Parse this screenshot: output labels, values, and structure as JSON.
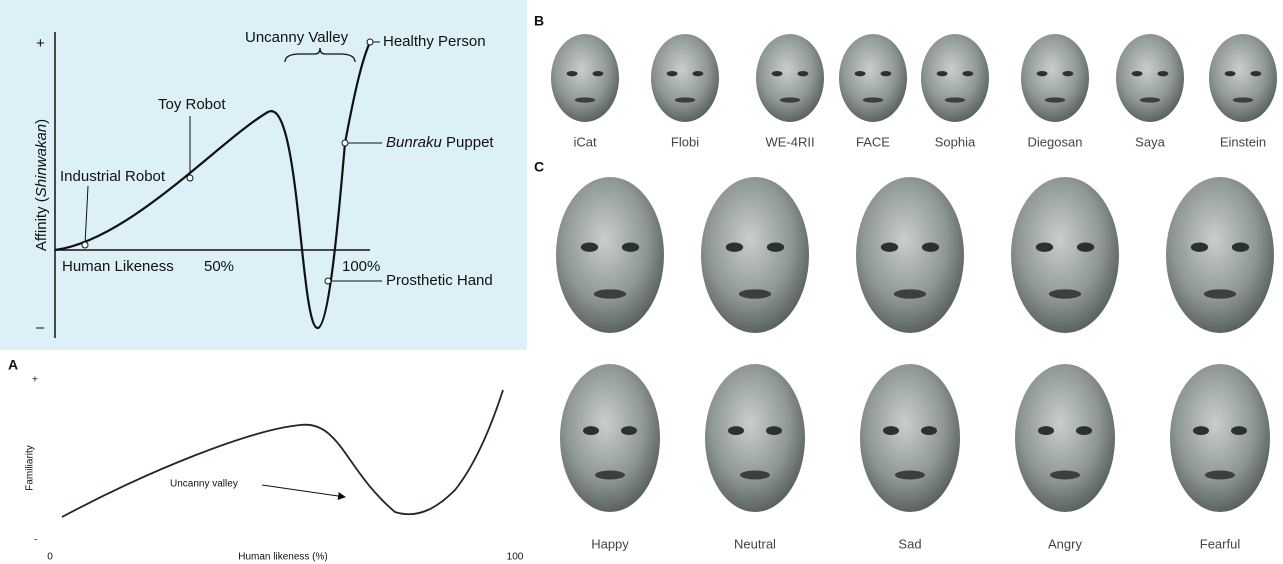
{
  "panel_top_left": {
    "y_plus": "+",
    "y_minus": "–",
    "y_label_prefix": "Affinity (",
    "y_label_italic": "Shinwakan",
    "y_label_suffix": ")",
    "x_label": "Human Likeness",
    "x_mid": "50%",
    "x_end": "100%",
    "uncanny_valley": "Uncanny Valley",
    "healthy_person": "Healthy Person",
    "toy_robot": "Toy Robot",
    "industrial_robot": "Industrial Robot",
    "bunraku_italic": "Bunraku",
    "bunraku_rest": " Puppet",
    "prosthetic_hand": "Prosthetic Hand"
  },
  "panel_a": {
    "label": "A",
    "y_plus": "+",
    "y_minus": "-",
    "y_label": "Familiarity",
    "x_label": "Human likeness (%)",
    "x_start": 0,
    "x_end": 100,
    "annotation": "Uncanny valley"
  },
  "panel_b": {
    "label": "B",
    "faces": [
      "iCat",
      "Flobi",
      "WE-4RII",
      "FACE",
      "Sophia",
      "Diegosan",
      "Saya",
      "Einstein"
    ]
  },
  "panel_c": {
    "label": "C",
    "emotions": [
      "Happy",
      "Neutral",
      "Sad",
      "Angry",
      "Fearful"
    ]
  }
}
